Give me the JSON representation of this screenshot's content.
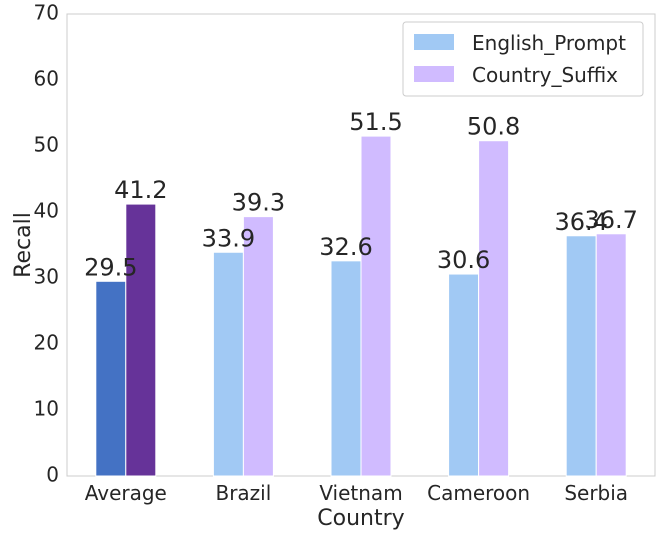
{
  "chart_data": {
    "type": "bar",
    "xlabel": "Country",
    "ylabel": "Recall",
    "ylim": [
      0,
      70
    ],
    "yticks": [
      0,
      10,
      20,
      30,
      40,
      50,
      60,
      70
    ],
    "categories": [
      "Average",
      "Brazil",
      "Vietnam",
      "Cameroon",
      "Serbia"
    ],
    "series": [
      {
        "name": "English_Prompt",
        "values": [
          29.5,
          33.9,
          32.6,
          30.6,
          36.4
        ],
        "color": "#a1c9f4",
        "highlight_color": "#4472c4"
      },
      {
        "name": "Country_Suffix",
        "values": [
          41.2,
          39.3,
          51.5,
          50.8,
          36.7
        ],
        "color": "#d0bbff",
        "highlight_color": "#663399"
      }
    ],
    "highlight_category": "Average",
    "grid": false,
    "legend_position": "top-right"
  }
}
